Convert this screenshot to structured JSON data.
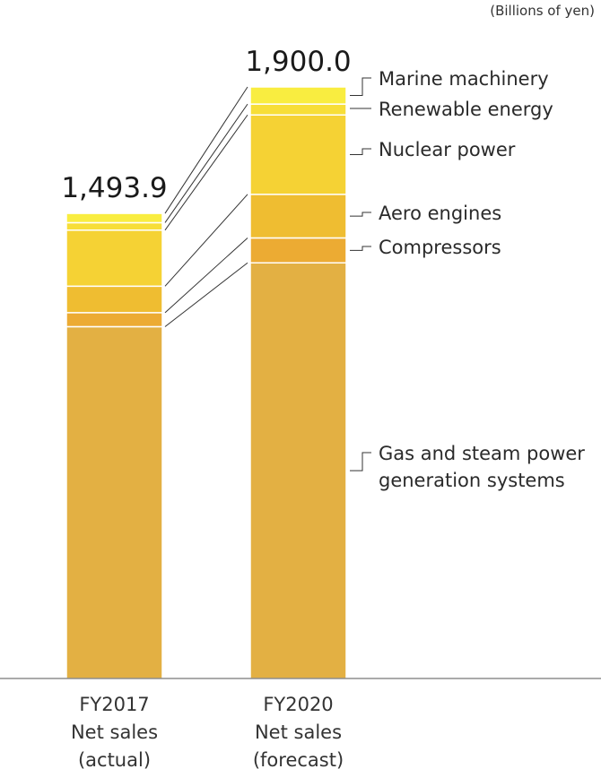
{
  "chart_data": {
    "type": "bar",
    "stacked": true,
    "unit_label": "(Billions of yen)",
    "categories": [
      {
        "lines": [
          "FY2017",
          "Net sales",
          "(actual)"
        ]
      },
      {
        "lines": [
          "FY2020",
          "Net sales",
          "(forecast)"
        ]
      }
    ],
    "totals": [
      "1,493.9",
      "1,900.0"
    ],
    "total_values": [
      1493.9,
      1900.0
    ],
    "series": [
      {
        "name": "Gas and steam power generation systems",
        "color": "#e3b043",
        "values": [
          1130,
          1335
        ]
      },
      {
        "name": "Compressors",
        "color": "#ecab33",
        "values": [
          45,
          80
        ]
      },
      {
        "name": "Aero engines",
        "color": "#efbd31",
        "values": [
          85,
          140
        ]
      },
      {
        "name": "Nuclear power",
        "color": "#f5d234",
        "values": [
          180,
          255
        ]
      },
      {
        "name": "Renewable energy",
        "color": "#f7de38",
        "values": [
          24,
          35
        ]
      },
      {
        "name": "Marine machinery",
        "color": "#f9ed40",
        "values": [
          29.9,
          55
        ]
      }
    ],
    "legend_labels": [
      {
        "series": 5,
        "lines": [
          "Marine machinery"
        ]
      },
      {
        "series": 4,
        "lines": [
          "Renewable energy"
        ]
      },
      {
        "series": 3,
        "lines": [
          "Nuclear power"
        ]
      },
      {
        "series": 2,
        "lines": [
          "Aero engines"
        ]
      },
      {
        "series": 1,
        "lines": [
          "Compressors"
        ]
      },
      {
        "series": 0,
        "lines": [
          "Gas and steam power",
          "generation systems"
        ]
      }
    ],
    "ylim": [
      0,
      1900
    ],
    "grid": false,
    "legend": "right"
  }
}
